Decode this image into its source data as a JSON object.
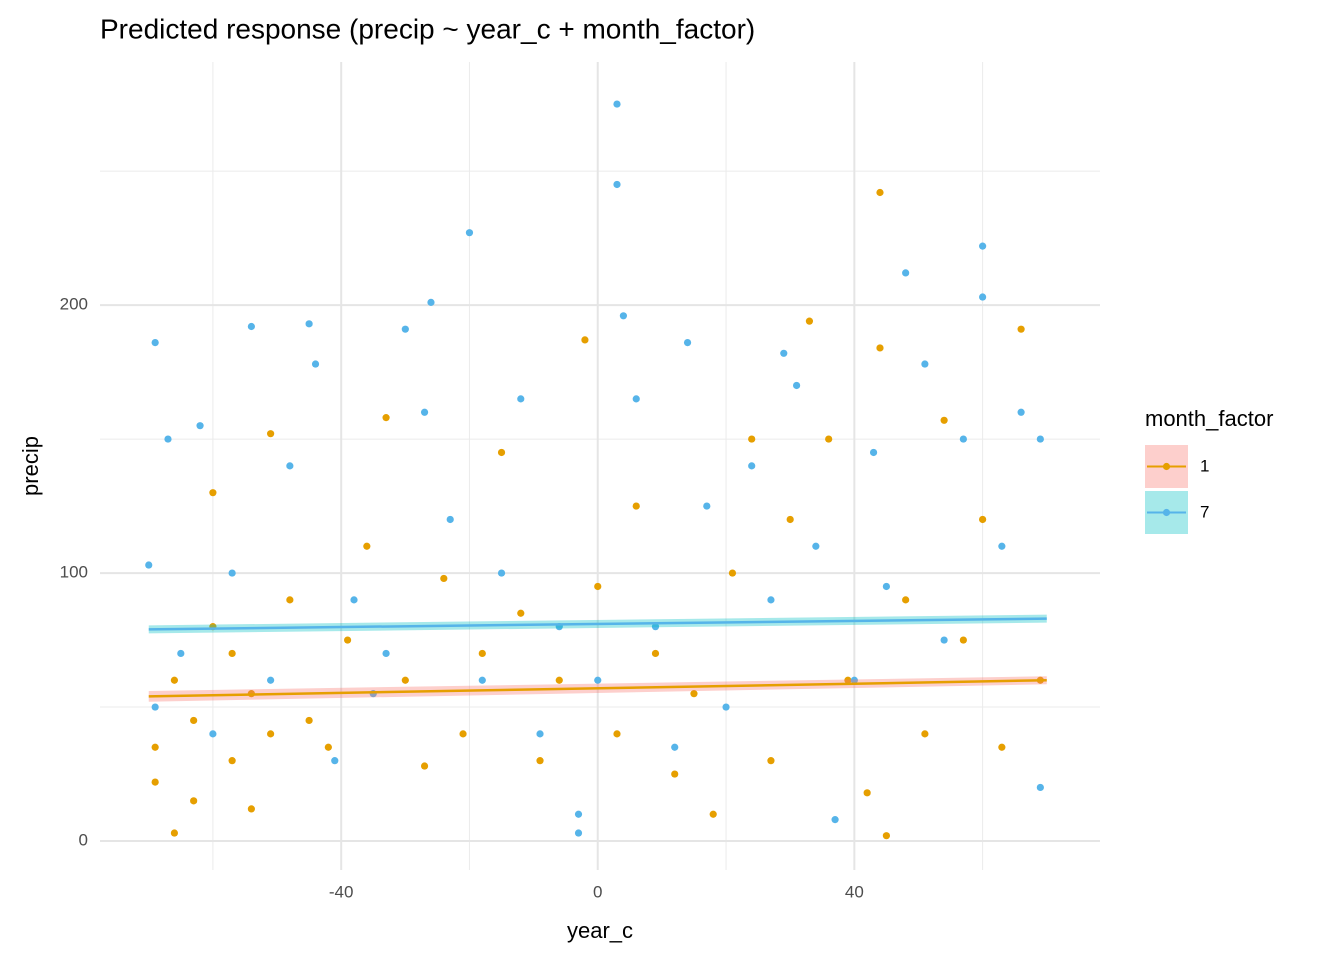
{
  "chart_data": {
    "type": "scatter",
    "title": "Predicted response (precip ~ year_c + month_factor)",
    "x_label": "year_c",
    "y_label": "precip",
    "xlim": [
      -77.6,
      78.3
    ],
    "ylim": [
      -10.8,
      290.7
    ],
    "xticks": [
      -40,
      0,
      40
    ],
    "yticks": [
      0,
      100,
      200
    ],
    "x_minor_grid": [
      -60,
      -20,
      20,
      60
    ],
    "y_minor_grid": [
      50,
      150,
      250
    ],
    "grid": true,
    "legend_title": "month_factor",
    "legend_position": "right",
    "series": [
      {
        "name": "1",
        "color": "#E69F00",
        "ribbon_color": "#F8766D",
        "x": [
          -69,
          -69,
          -66,
          -66,
          -63,
          -63,
          -60,
          -60,
          -57,
          -57,
          -54,
          -54,
          -51,
          -51,
          -48,
          -45,
          -42,
          -39,
          -36,
          -33,
          -30,
          -27,
          -24,
          -21,
          -18,
          -15,
          -12,
          -9,
          -6,
          -2,
          0,
          3,
          6,
          9,
          12,
          15,
          18,
          21,
          24,
          27,
          30,
          33,
          36,
          39,
          42,
          44,
          44,
          45,
          48,
          51,
          54,
          57,
          60,
          63,
          66,
          69
        ],
        "values": [
          22,
          35,
          3,
          60,
          15,
          45,
          80,
          130,
          30,
          70,
          12,
          55,
          152,
          40,
          90,
          45,
          35,
          75,
          110,
          158,
          60,
          28,
          98,
          40,
          70,
          145,
          85,
          30,
          60,
          187,
          95,
          40,
          125,
          70,
          25,
          55,
          10,
          100,
          150,
          30,
          120,
          194,
          150,
          60,
          18,
          242,
          184,
          2,
          90,
          40,
          157,
          75,
          120,
          35,
          191,
          60
        ],
        "fit": {
          "x": [
            -70,
            70
          ],
          "values": [
            54,
            60
          ],
          "lower": [
            52,
            58.5
          ],
          "upper": [
            56,
            61.5
          ]
        }
      },
      {
        "name": "7",
        "color": "#56B4E9",
        "ribbon_color": "#00BFC4",
        "x": [
          -70,
          -69,
          -69,
          -67,
          -65,
          -62,
          -60,
          -57,
          -54,
          -51,
          -48,
          -45,
          -44,
          -41,
          -38,
          -35,
          -33,
          -30,
          -27,
          -26,
          -23,
          -20,
          -18,
          -15,
          -12,
          -9,
          -6,
          -3,
          -3,
          0,
          3,
          3,
          4,
          6,
          9,
          12,
          14,
          17,
          20,
          24,
          27,
          29,
          31,
          34,
          37,
          40,
          43,
          45,
          48,
          51,
          54,
          57,
          60,
          60,
          63,
          66,
          69,
          69
        ],
        "values": [
          103,
          186,
          50,
          150,
          70,
          155,
          40,
          100,
          192,
          60,
          140,
          193,
          178,
          30,
          90,
          55,
          70,
          191,
          160,
          201,
          120,
          227,
          60,
          100,
          165,
          40,
          80,
          10,
          3,
          60,
          275,
          245,
          196,
          165,
          80,
          35,
          186,
          125,
          50,
          140,
          90,
          182,
          170,
          110,
          8,
          60,
          145,
          95,
          212,
          178,
          75,
          150,
          222,
          203,
          110,
          160,
          20,
          150
        ],
        "fit": {
          "x": [
            -70,
            70
          ],
          "values": [
            79,
            83
          ],
          "lower": [
            77.5,
            81.5
          ],
          "upper": [
            80.5,
            84.5
          ]
        }
      }
    ]
  }
}
